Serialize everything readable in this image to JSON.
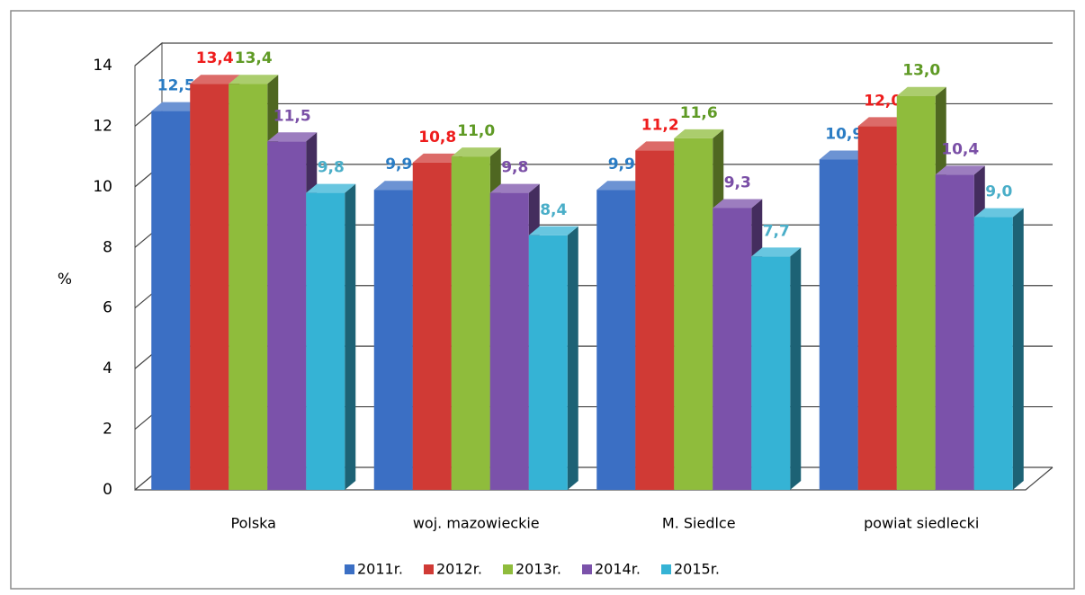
{
  "chart_data": {
    "type": "bar3d",
    "ylabel": "%",
    "categories": [
      "Polska",
      "woj. mazowieckie",
      "M. Siedlce",
      "powiat siedlecki"
    ],
    "series": [
      {
        "name": "2011r.",
        "color": "#3b6fc4",
        "label_color": "#2a7cc4",
        "values": [
          12.5,
          9.9,
          9.9,
          10.9
        ],
        "value_labels": [
          "12,5",
          "9,9",
          "9,9",
          "10,9"
        ]
      },
      {
        "name": "2012r.",
        "color": "#d03a35",
        "label_color": "#ee1c1c",
        "values": [
          13.4,
          10.8,
          11.2,
          12.0
        ],
        "value_labels": [
          "13,4",
          "10,8",
          "11,2",
          "12,0"
        ]
      },
      {
        "name": "2013r.",
        "color": "#8fbc3c",
        "label_color": "#5f9a25",
        "values": [
          13.4,
          11.0,
          11.6,
          13.0
        ],
        "value_labels": [
          "13,4",
          "11,0",
          "11,6",
          "13,0"
        ]
      },
      {
        "name": "2014r.",
        "color": "#7b52aa",
        "label_color": "#7a4fa6",
        "values": [
          11.5,
          9.8,
          9.3,
          10.4
        ],
        "value_labels": [
          "11,5",
          "9,8",
          "9,3",
          "10,4"
        ]
      },
      {
        "name": "2015r.",
        "color": "#35b3d5",
        "label_color": "#4aaec8",
        "values": [
          9.8,
          8.4,
          7.7,
          9.0
        ],
        "value_labels": [
          "9,8",
          "8,4",
          "7,7",
          "9,0"
        ]
      }
    ],
    "ylim": [
      0,
      14
    ],
    "yticks": [
      0,
      2,
      4,
      6,
      8,
      10,
      12,
      14
    ],
    "grid": true,
    "legend": "bottom"
  }
}
